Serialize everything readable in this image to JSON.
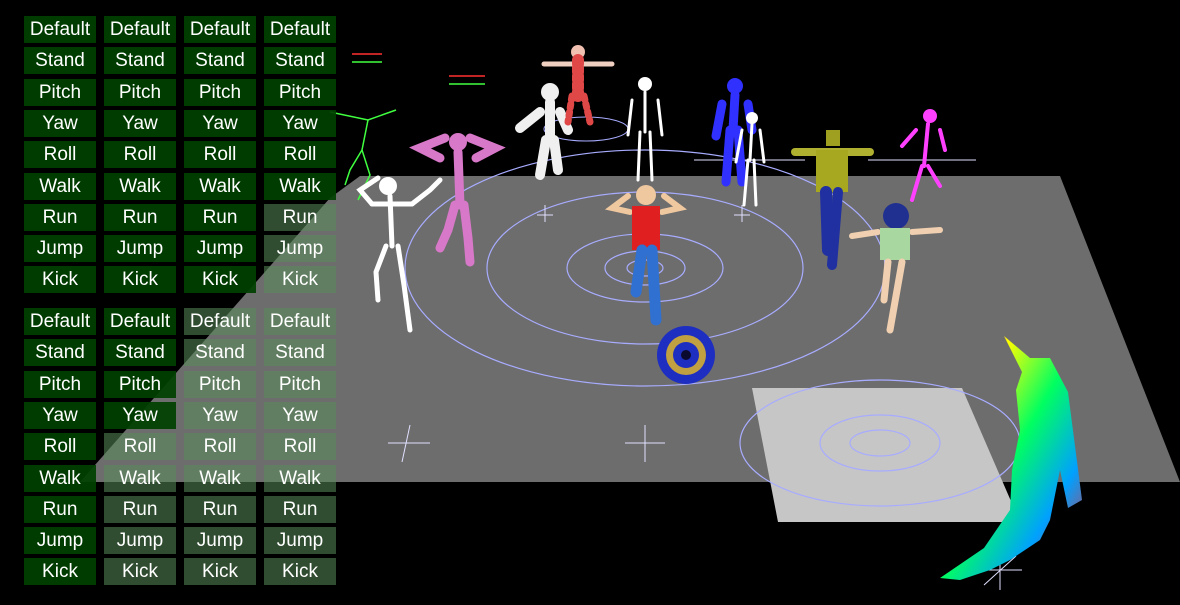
{
  "colors": {
    "background": "#000000",
    "floor": "#6f6f6f",
    "floor_lit": "#c8c8c8",
    "button_bg": "#004000",
    "button_text": "#ffffff",
    "ring": "#9aa0ff"
  },
  "panels": [
    {
      "id": "top",
      "columns": [
        [
          "Default",
          "Stand",
          "Pitch",
          "Yaw",
          "Roll",
          "Walk",
          "Run",
          "Jump",
          "Kick"
        ],
        [
          "Default",
          "Stand",
          "Pitch",
          "Yaw",
          "Roll",
          "Walk",
          "Run",
          "Jump",
          "Kick"
        ],
        [
          "Default",
          "Stand",
          "Pitch",
          "Yaw",
          "Roll",
          "Walk",
          "Run",
          "Jump",
          "Kick"
        ],
        [
          "Default",
          "Stand",
          "Pitch",
          "Yaw",
          "Roll",
          "Walk",
          "Run",
          "Jump",
          "Kick"
        ]
      ]
    },
    {
      "id": "bottom",
      "columns": [
        [
          "Default",
          "Stand",
          "Pitch",
          "Yaw",
          "Roll",
          "Walk",
          "Run",
          "Jump",
          "Kick"
        ],
        [
          "Default",
          "Stand",
          "Pitch",
          "Yaw",
          "Roll",
          "Walk",
          "Run",
          "Jump",
          "Kick"
        ],
        [
          "Default",
          "Stand",
          "Pitch",
          "Yaw",
          "Roll",
          "Walk",
          "Run",
          "Jump",
          "Kick"
        ],
        [
          "Default",
          "Stand",
          "Pitch",
          "Yaw",
          "Roll",
          "Walk",
          "Run",
          "Jump",
          "Kick"
        ]
      ]
    }
  ],
  "scene": {
    "characters": [
      {
        "name": "skeleton-front-left",
        "color": "#ffffff"
      },
      {
        "name": "pink-figure",
        "color": "#e070c0"
      },
      {
        "name": "white-figure",
        "color": "#f0f0f0"
      },
      {
        "name": "striped-figure",
        "color": "#e05050"
      },
      {
        "name": "skeleton-back",
        "color": "#ffffff"
      },
      {
        "name": "blue-figure",
        "color": "#2020ff"
      },
      {
        "name": "skeleton-small",
        "color": "#ffffff"
      },
      {
        "name": "yellow-robot",
        "color": "#a0a020"
      },
      {
        "name": "magenta-skeleton",
        "color": "#ff40ff"
      },
      {
        "name": "red-shirt-character",
        "color": "#e02020"
      },
      {
        "name": "anime-character",
        "color": "#203080"
      },
      {
        "name": "rainbow-figure",
        "color": "#ff00ff"
      }
    ]
  }
}
